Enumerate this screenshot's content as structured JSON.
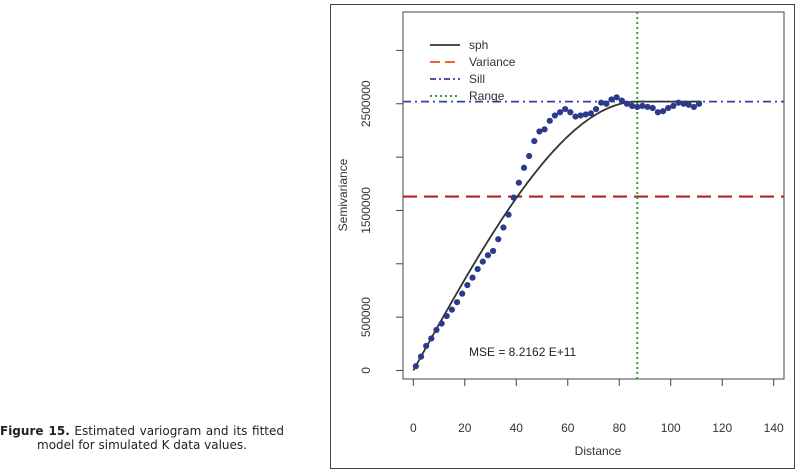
{
  "caption": {
    "label": "Figure 15.",
    "text": " Estimated variogram and its fitted model for simulated K data values."
  },
  "chart_data": {
    "type": "scatter",
    "title": "",
    "xlabel": "Distance",
    "ylabel": "Semivariance",
    "xlim": [
      -4,
      144
    ],
    "ylim": [
      -80000,
      3360000
    ],
    "x_ticks": [
      0,
      20,
      40,
      60,
      80,
      100,
      120,
      140
    ],
    "x_tick_labels": [
      "0",
      "20",
      "40",
      "60",
      "80",
      "100",
      "120",
      "140"
    ],
    "y_ticks": [
      0,
      500000,
      1000000,
      1500000,
      2000000,
      2500000,
      3000000
    ],
    "y_tick_labels": [
      "0",
      "500000",
      "1500000",
      "2500000"
    ],
    "y_labeled_ticks": [
      0,
      500000,
      1500000,
      2500000
    ],
    "legend": {
      "placement": "top-left",
      "entries": [
        "sph",
        "Variance",
        "Sill",
        "Range"
      ]
    },
    "variance": 1630000,
    "sill": 2520000,
    "range": 87,
    "model": {
      "name": "sph",
      "nugget": 0,
      "sill": 2520000,
      "range": 87
    },
    "annotation": "MSE =  8.2162 E+11",
    "colors": {
      "points": "#2b3a8c",
      "model": "#333333",
      "variance": "#b22222",
      "variance_legend": "#e8663a",
      "sill": "#3a3d9a",
      "range": "#2e9e3a"
    },
    "series": [
      {
        "name": "empirical semivariance",
        "x": [
          1,
          3,
          5,
          7,
          9,
          11,
          13,
          15,
          17,
          19,
          21,
          23,
          25,
          27,
          29,
          31,
          33,
          35,
          37,
          39,
          41,
          43,
          45,
          47,
          49,
          51,
          53,
          55,
          57,
          59,
          61,
          63,
          65,
          67,
          69,
          71,
          73,
          75,
          77,
          79,
          81,
          83,
          85,
          87,
          89,
          91,
          93,
          95,
          97,
          99,
          101,
          103,
          105,
          107,
          109,
          111
        ],
        "y": [
          40000,
          130000,
          230000,
          300000,
          380000,
          440000,
          510000,
          570000,
          640000,
          720000,
          800000,
          870000,
          950000,
          1020000,
          1080000,
          1120000,
          1230000,
          1340000,
          1460000,
          1620000,
          1760000,
          1900000,
          2010000,
          2150000,
          2240000,
          2260000,
          2340000,
          2390000,
          2420000,
          2450000,
          2420000,
          2380000,
          2390000,
          2400000,
          2410000,
          2450000,
          2510000,
          2500000,
          2540000,
          2560000,
          2530000,
          2500000,
          2480000,
          2470000,
          2480000,
          2470000,
          2460000,
          2420000,
          2430000,
          2460000,
          2480000,
          2510000,
          2500000,
          2490000,
          2470000,
          2500000
        ]
      }
    ]
  }
}
